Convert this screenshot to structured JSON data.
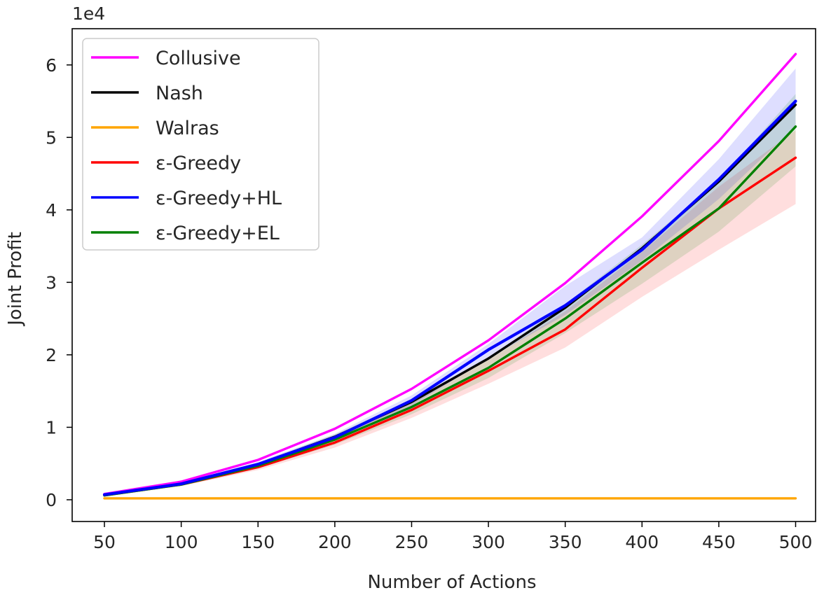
{
  "chart_data": {
    "type": "line",
    "title": "",
    "xlabel": "Number of Actions",
    "ylabel": "Joint Profit",
    "y_exponent_label": "1e4",
    "x": [
      50,
      100,
      150,
      200,
      250,
      300,
      350,
      400,
      450,
      500
    ],
    "xticks": [
      50,
      100,
      150,
      200,
      250,
      300,
      350,
      400,
      450,
      500
    ],
    "yticks": [
      0,
      1,
      2,
      3,
      4,
      5,
      6
    ],
    "ytick_labels": [
      "0",
      "1",
      "2",
      "3",
      "4",
      "5",
      "6"
    ],
    "xlim": [
      29,
      513
    ],
    "ylim": [
      -0.3,
      6.5
    ],
    "y_scale": 10000,
    "grid": false,
    "legend_position": "top-left",
    "series": [
      {
        "name": "Collusive",
        "color": "#ff00ff",
        "values": [
          0.08,
          0.25,
          0.55,
          0.98,
          1.53,
          2.2,
          2.99,
          3.91,
          4.95,
          6.15
        ]
      },
      {
        "name": "Nash",
        "color": "#000000",
        "values": [
          0.07,
          0.22,
          0.49,
          0.87,
          1.35,
          1.95,
          2.65,
          3.47,
          4.39,
          5.45
        ]
      },
      {
        "name": "Walras",
        "color": "#ffa500",
        "values": [
          0.02,
          0.02,
          0.02,
          0.02,
          0.02,
          0.02,
          0.02,
          0.02,
          0.02,
          0.02
        ]
      },
      {
        "name": "ε-Greedy",
        "color": "#ff0000",
        "values": [
          0.06,
          0.21,
          0.45,
          0.79,
          1.24,
          1.78,
          2.35,
          3.2,
          4.02,
          4.72
        ],
        "band_lower": [
          0.05,
          0.19,
          0.41,
          0.72,
          1.13,
          1.6,
          2.1,
          2.8,
          3.45,
          4.08
        ],
        "band_upper": [
          0.07,
          0.23,
          0.49,
          0.86,
          1.34,
          1.93,
          2.6,
          3.42,
          4.32,
          5.1
        ]
      },
      {
        "name": "ε-Greedy+HL",
        "color": "#0000ff",
        "values": [
          0.07,
          0.22,
          0.49,
          0.86,
          1.37,
          2.07,
          2.68,
          3.45,
          4.42,
          5.5
        ],
        "band_lower": [
          0.06,
          0.21,
          0.46,
          0.82,
          1.3,
          1.95,
          2.55,
          3.3,
          4.15,
          5.15
        ],
        "band_upper": [
          0.08,
          0.24,
          0.52,
          0.91,
          1.44,
          2.15,
          2.95,
          3.62,
          4.7,
          5.95
        ]
      },
      {
        "name": "ε-Greedy+EL",
        "color": "#008000",
        "values": [
          0.06,
          0.21,
          0.47,
          0.83,
          1.28,
          1.82,
          2.5,
          3.27,
          4.02,
          5.15
        ],
        "band_lower": [
          0.05,
          0.19,
          0.43,
          0.76,
          1.18,
          1.68,
          2.3,
          2.98,
          3.7,
          4.6
        ],
        "band_upper": [
          0.07,
          0.23,
          0.51,
          0.9,
          1.38,
          1.96,
          2.7,
          3.52,
          4.4,
          5.6
        ]
      }
    ]
  }
}
